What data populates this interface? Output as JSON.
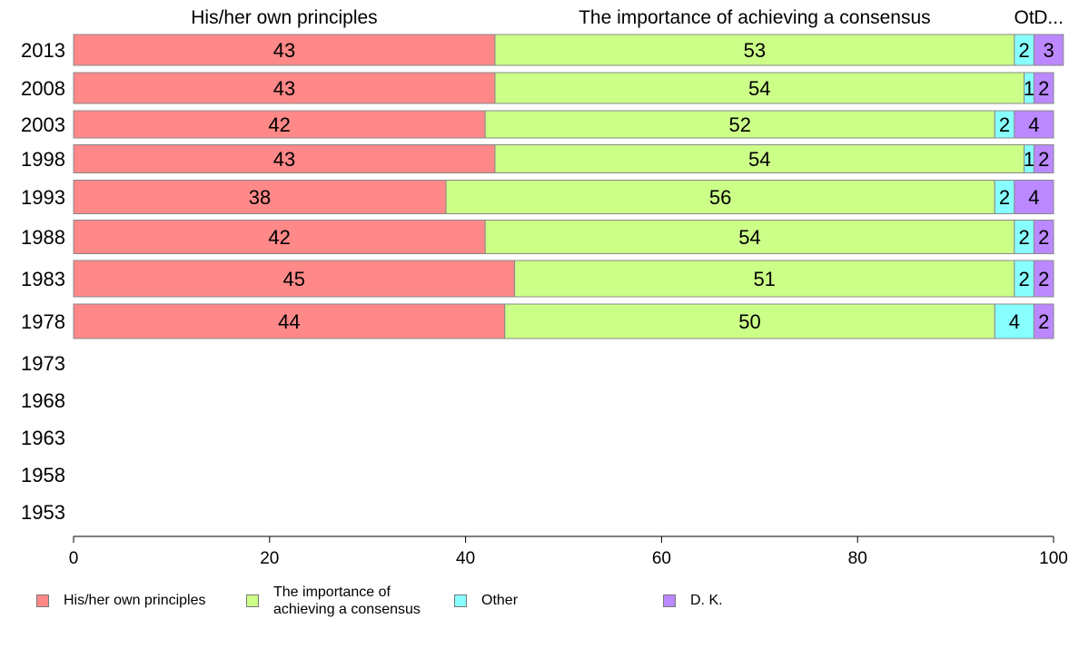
{
  "chart_data": {
    "type": "bar",
    "orientation": "horizontal",
    "stacked": true,
    "categories": [
      "2013",
      "2008",
      "2003",
      "1998",
      "1993",
      "1988",
      "1983",
      "1978",
      "1973",
      "1968",
      "1963",
      "1958",
      "1953"
    ],
    "series": [
      {
        "name": "His/her own principles",
        "header": "His/her own principles",
        "color": "#ff8888",
        "values": [
          43,
          43,
          42,
          43,
          38,
          42,
          45,
          44,
          null,
          null,
          null,
          null,
          null
        ]
      },
      {
        "name": "The importance of achieving a consensus",
        "legend_lines": [
          "The importance of",
          "achieving a consensus"
        ],
        "header": "The importance of achieving a consensus",
        "color": "#ccff88",
        "values": [
          53,
          54,
          52,
          54,
          56,
          54,
          51,
          50,
          null,
          null,
          null,
          null,
          null
        ]
      },
      {
        "name": "Other",
        "header": "Ot",
        "color": "#88ffff",
        "values": [
          2,
          1,
          2,
          1,
          2,
          2,
          2,
          4,
          null,
          null,
          null,
          null,
          null
        ]
      },
      {
        "name": "D. K.",
        "header": "D...",
        "color": "#bb88ff",
        "values": [
          3,
          2,
          4,
          2,
          4,
          2,
          2,
          2,
          null,
          null,
          null,
          null,
          null
        ]
      }
    ],
    "xlim": [
      0,
      100
    ],
    "xticks": [
      "0",
      "20",
      "40",
      "60",
      "80",
      "100"
    ],
    "grid": false,
    "legend_position": "bottom"
  }
}
